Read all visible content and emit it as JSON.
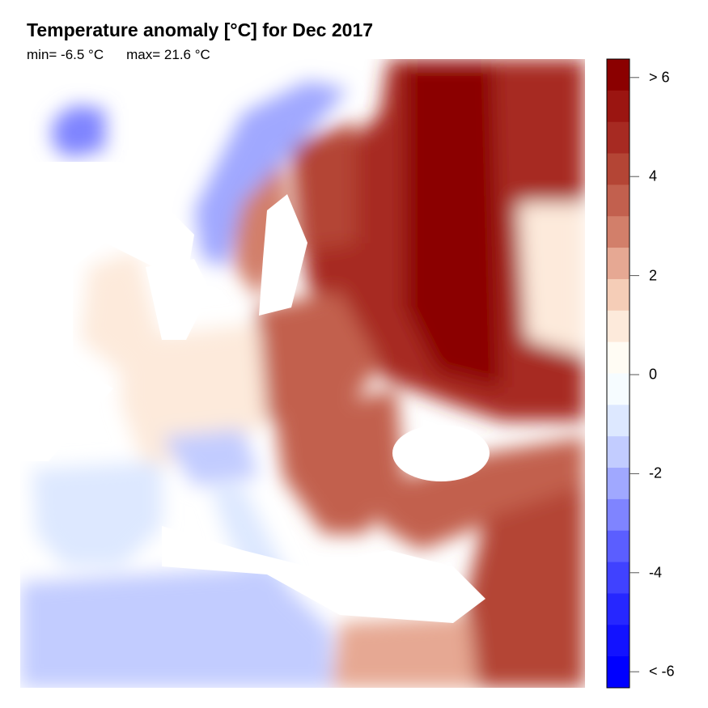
{
  "title": "Temperature anomaly [°C] for Dec 2017",
  "stats": {
    "min": "min= -6.5 °C",
    "max": "max= 21.6 °C"
  },
  "colorbar": {
    "ticks": [
      {
        "v": 6,
        "label": "> 6"
      },
      {
        "v": 4,
        "label": "4"
      },
      {
        "v": 2,
        "label": "2"
      },
      {
        "v": 0,
        "label": "0"
      },
      {
        "v": -2,
        "label": "-2"
      },
      {
        "v": -4,
        "label": "-4"
      },
      {
        "v": -6,
        "label": "< -6"
      }
    ],
    "colors": [
      "#8b0000",
      "#9b1511",
      "#a72a22",
      "#b44535",
      "#c2604e",
      "#d27f6a",
      "#e6a893",
      "#f5cdb7",
      "#fdeadb",
      "#fffcf4",
      "#f6fcff",
      "#dde8ff",
      "#c2ccff",
      "#a0a8ff",
      "#7f84ff",
      "#5b5eff",
      "#4042ff",
      "#2627ff",
      "#1212ff",
      "#0000ff"
    ]
  },
  "colors": {
    "sea": "#ffffff",
    "border": "#000000"
  }
}
